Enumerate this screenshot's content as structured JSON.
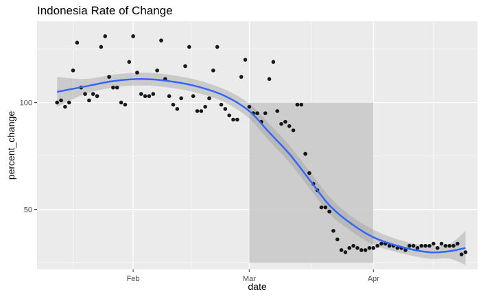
{
  "chart_data": {
    "type": "scatter",
    "title": "Indonesia Rate of Change",
    "xlabel": "date",
    "ylabel": "percent_change",
    "x_range": [
      "2020-01-08",
      "2020-04-27"
    ],
    "ylim": [
      22,
      138
    ],
    "x_ticks": [
      {
        "date": "2020-02-01",
        "label": "Feb"
      },
      {
        "date": "2020-03-01",
        "label": "Mar"
      },
      {
        "date": "2020-04-01",
        "label": "Apr"
      }
    ],
    "y_ticks": [
      50,
      100
    ],
    "grid": true,
    "colors": {
      "panel": "#ebebeb",
      "grid": "#ffffff",
      "points": "#000000",
      "smooth_line": "#3366ff",
      "ribbon": "#bdbdbd",
      "shaded_region": "#c8c8c8"
    },
    "shaded_region": {
      "x_start": "2020-03-01",
      "x_end": "2020-04-01",
      "y_start": 25,
      "y_end": 100
    },
    "points": [
      {
        "x": "2020-01-13",
        "y": 100
      },
      {
        "x": "2020-01-14",
        "y": 101
      },
      {
        "x": "2020-01-15",
        "y": 98
      },
      {
        "x": "2020-01-16",
        "y": 100
      },
      {
        "x": "2020-01-17",
        "y": 115
      },
      {
        "x": "2020-01-18",
        "y": 128
      },
      {
        "x": "2020-01-19",
        "y": 107
      },
      {
        "x": "2020-01-20",
        "y": 104
      },
      {
        "x": "2020-01-21",
        "y": 101
      },
      {
        "x": "2020-01-22",
        "y": 104
      },
      {
        "x": "2020-01-23",
        "y": 103
      },
      {
        "x": "2020-01-24",
        "y": 126
      },
      {
        "x": "2020-01-25",
        "y": 131
      },
      {
        "x": "2020-01-26",
        "y": 112
      },
      {
        "x": "2020-01-27",
        "y": 107
      },
      {
        "x": "2020-01-28",
        "y": 107
      },
      {
        "x": "2020-01-29",
        "y": 100
      },
      {
        "x": "2020-01-30",
        "y": 99
      },
      {
        "x": "2020-01-31",
        "y": 119
      },
      {
        "x": "2020-02-01",
        "y": 131
      },
      {
        "x": "2020-02-02",
        "y": 114
      },
      {
        "x": "2020-02-03",
        "y": 104
      },
      {
        "x": "2020-02-04",
        "y": 103
      },
      {
        "x": "2020-02-05",
        "y": 103
      },
      {
        "x": "2020-02-06",
        "y": 104
      },
      {
        "x": "2020-02-07",
        "y": 115
      },
      {
        "x": "2020-02-08",
        "y": 129
      },
      {
        "x": "2020-02-09",
        "y": 111
      },
      {
        "x": "2020-02-10",
        "y": 103
      },
      {
        "x": "2020-02-11",
        "y": 99
      },
      {
        "x": "2020-02-12",
        "y": 97
      },
      {
        "x": "2020-02-13",
        "y": 102
      },
      {
        "x": "2020-02-14",
        "y": 117
      },
      {
        "x": "2020-02-15",
        "y": 126
      },
      {
        "x": "2020-02-16",
        "y": 103
      },
      {
        "x": "2020-02-17",
        "y": 96
      },
      {
        "x": "2020-02-18",
        "y": 96
      },
      {
        "x": "2020-02-19",
        "y": 98
      },
      {
        "x": "2020-02-20",
        "y": 102
      },
      {
        "x": "2020-02-21",
        "y": 115
      },
      {
        "x": "2020-02-22",
        "y": 126
      },
      {
        "x": "2020-02-23",
        "y": 99
      },
      {
        "x": "2020-02-24",
        "y": 97
      },
      {
        "x": "2020-02-25",
        "y": 94
      },
      {
        "x": "2020-02-26",
        "y": 92
      },
      {
        "x": "2020-02-27",
        "y": 92
      },
      {
        "x": "2020-02-28",
        "y": 112
      },
      {
        "x": "2020-02-29",
        "y": 120
      },
      {
        "x": "2020-03-01",
        "y": 98
      },
      {
        "x": "2020-03-02",
        "y": 95
      },
      {
        "x": "2020-03-03",
        "y": 95
      },
      {
        "x": "2020-03-04",
        "y": 91
      },
      {
        "x": "2020-03-05",
        "y": 95
      },
      {
        "x": "2020-03-06",
        "y": 111
      },
      {
        "x": "2020-03-07",
        "y": 119
      },
      {
        "x": "2020-03-08",
        "y": 96
      },
      {
        "x": "2020-03-09",
        "y": 90
      },
      {
        "x": "2020-03-10",
        "y": 91
      },
      {
        "x": "2020-03-11",
        "y": 89
      },
      {
        "x": "2020-03-12",
        "y": 87
      },
      {
        "x": "2020-03-13",
        "y": 99
      },
      {
        "x": "2020-03-14",
        "y": 99
      },
      {
        "x": "2020-03-15",
        "y": 76
      },
      {
        "x": "2020-03-16",
        "y": 67
      },
      {
        "x": "2020-03-17",
        "y": 62
      },
      {
        "x": "2020-03-18",
        "y": 59
      },
      {
        "x": "2020-03-19",
        "y": 51
      },
      {
        "x": "2020-03-20",
        "y": 51
      },
      {
        "x": "2020-03-21",
        "y": 49
      },
      {
        "x": "2020-03-22",
        "y": 40
      },
      {
        "x": "2020-03-23",
        "y": 36
      },
      {
        "x": "2020-03-24",
        "y": 31
      },
      {
        "x": "2020-03-25",
        "y": 30
      },
      {
        "x": "2020-03-26",
        "y": 32
      },
      {
        "x": "2020-03-27",
        "y": 33
      },
      {
        "x": "2020-03-28",
        "y": 32
      },
      {
        "x": "2020-03-29",
        "y": 31
      },
      {
        "x": "2020-03-30",
        "y": 31
      },
      {
        "x": "2020-03-31",
        "y": 32
      },
      {
        "x": "2020-04-01",
        "y": 32
      },
      {
        "x": "2020-04-02",
        "y": 33
      },
      {
        "x": "2020-04-03",
        "y": 34
      },
      {
        "x": "2020-04-04",
        "y": 34
      },
      {
        "x": "2020-04-05",
        "y": 33
      },
      {
        "x": "2020-04-06",
        "y": 33
      },
      {
        "x": "2020-04-07",
        "y": 32
      },
      {
        "x": "2020-04-08",
        "y": 32
      },
      {
        "x": "2020-04-09",
        "y": 31
      },
      {
        "x": "2020-04-10",
        "y": 33
      },
      {
        "x": "2020-04-11",
        "y": 33
      },
      {
        "x": "2020-04-12",
        "y": 32
      },
      {
        "x": "2020-04-13",
        "y": 33
      },
      {
        "x": "2020-04-14",
        "y": 33
      },
      {
        "x": "2020-04-15",
        "y": 33
      },
      {
        "x": "2020-04-16",
        "y": 34
      },
      {
        "x": "2020-04-17",
        "y": 32
      },
      {
        "x": "2020-04-18",
        "y": 34
      },
      {
        "x": "2020-04-19",
        "y": 33
      },
      {
        "x": "2020-04-20",
        "y": 33
      },
      {
        "x": "2020-04-21",
        "y": 33
      },
      {
        "x": "2020-04-22",
        "y": 34
      },
      {
        "x": "2020-04-23",
        "y": 29
      },
      {
        "x": "2020-04-24",
        "y": 30
      }
    ],
    "smooth": [
      {
        "x": "2020-01-13",
        "y": 105,
        "lo": 98,
        "hi": 112
      },
      {
        "x": "2020-01-20",
        "y": 107.5,
        "lo": 104,
        "hi": 111
      },
      {
        "x": "2020-01-27",
        "y": 110,
        "lo": 107,
        "hi": 113
      },
      {
        "x": "2020-02-03",
        "y": 111,
        "lo": 108,
        "hi": 114
      },
      {
        "x": "2020-02-10",
        "y": 110,
        "lo": 107,
        "hi": 113
      },
      {
        "x": "2020-02-17",
        "y": 107.5,
        "lo": 104.5,
        "hi": 110.5
      },
      {
        "x": "2020-02-24",
        "y": 103,
        "lo": 100,
        "hi": 106
      },
      {
        "x": "2020-03-01",
        "y": 96,
        "lo": 92.5,
        "hi": 99.5
      },
      {
        "x": "2020-03-06",
        "y": 86,
        "lo": 82,
        "hi": 90
      },
      {
        "x": "2020-03-11",
        "y": 76,
        "lo": 72,
        "hi": 80
      },
      {
        "x": "2020-03-16",
        "y": 64,
        "lo": 60,
        "hi": 68
      },
      {
        "x": "2020-03-21",
        "y": 52,
        "lo": 48,
        "hi": 56
      },
      {
        "x": "2020-03-26",
        "y": 44,
        "lo": 40.5,
        "hi": 47.5
      },
      {
        "x": "2020-04-01",
        "y": 37,
        "lo": 33.5,
        "hi": 40.5
      },
      {
        "x": "2020-04-08",
        "y": 32.5,
        "lo": 29.5,
        "hi": 35.5
      },
      {
        "x": "2020-04-15",
        "y": 30,
        "lo": 27,
        "hi": 33
      },
      {
        "x": "2020-04-20",
        "y": 30.5,
        "lo": 27,
        "hi": 34
      },
      {
        "x": "2020-04-24",
        "y": 32,
        "lo": 24,
        "hi": 40
      }
    ]
  }
}
